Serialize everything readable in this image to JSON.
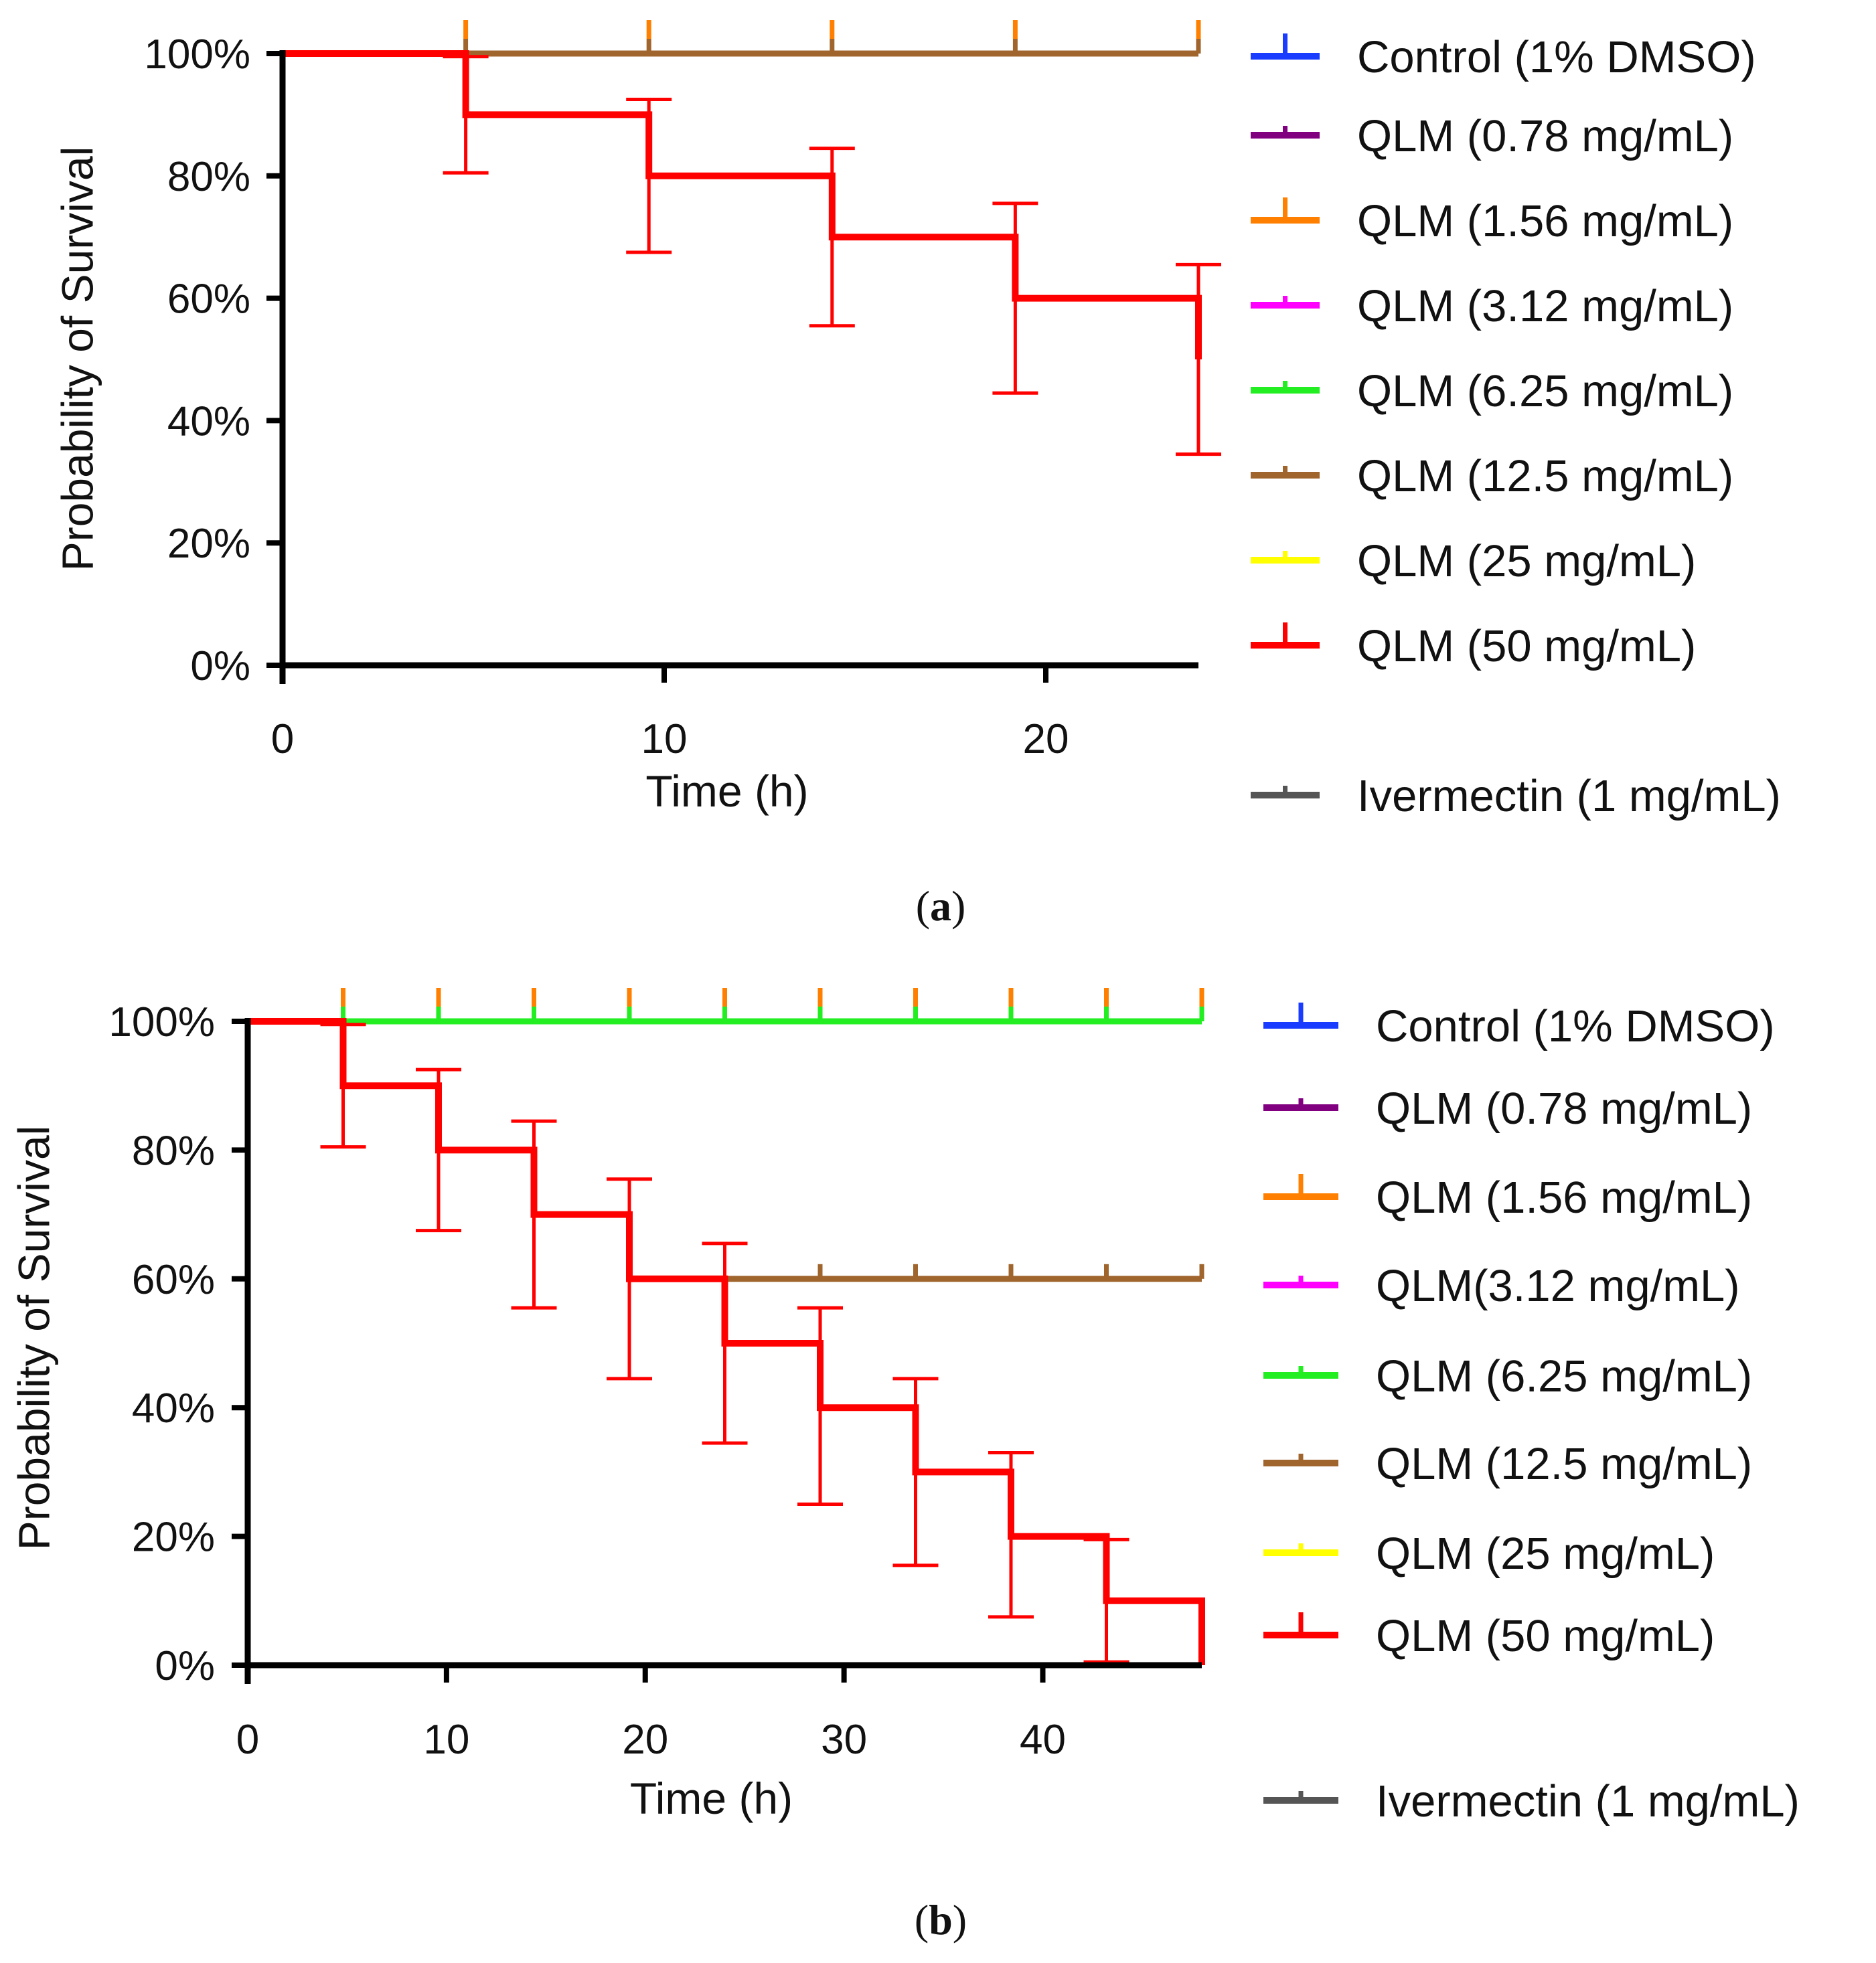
{
  "colors": {
    "control": "#1a3cff",
    "q078": "#800080",
    "q156": "#ff8000",
    "q312": "#ff00ff",
    "q625": "#22ee22",
    "q125": "#a0642d",
    "q25": "#ffff00",
    "q50": "#ff0000",
    "iver": "#555555",
    "axis": "#000000"
  },
  "chart_data": [
    {
      "type": "line",
      "subtype": "kaplan-meier step",
      "caption": "(a)",
      "xlabel": "Time (h)",
      "ylabel": "Probability of Survival",
      "xlim": [
        0,
        24
      ],
      "ylim": [
        0,
        100
      ],
      "xticks": [
        "0",
        "10",
        "20"
      ],
      "xtick_values": [
        0,
        10,
        20
      ],
      "yticks": [
        "0%",
        "20%",
        "40%",
        "60%",
        "80%",
        "100%"
      ],
      "ytick_values": [
        0,
        20,
        40,
        60,
        80,
        100
      ],
      "legend": [
        "Control (1% DMSO)",
        "QLM (0.78 mg/mL)",
        "QLM (1.56 mg/mL)",
        "QLM (3.12 mg/mL)",
        "QLM (6.25 mg/mL)",
        "QLM (12.5 mg/mL)",
        "QLM (25 mg/mL)",
        "QLM (50 mg/mL)",
        "Ivermectin (1 mg/mL)"
      ],
      "legend_keys": [
        "control",
        "q078",
        "q156",
        "q312",
        "q625",
        "q125",
        "q25",
        "q50",
        "iver"
      ],
      "legend_placement": "right",
      "series": [
        {
          "name": "QLM (12.5 mg/mL)",
          "key": "q125",
          "steps": [
            [
              0,
              100
            ],
            [
              24,
              100
            ]
          ],
          "censor_ticks": [
            4.8,
            9.6,
            14.4,
            19.2,
            24
          ],
          "censor_color_key": "q156"
        },
        {
          "name": "QLM (50 mg/mL)",
          "key": "q50",
          "steps": [
            [
              0,
              100
            ],
            [
              4.8,
              90
            ],
            [
              9.6,
              80
            ],
            [
              14.4,
              70
            ],
            [
              19.2,
              60
            ],
            [
              24,
              50
            ]
          ],
          "error_bars": [
            [
              4.8,
              80.5,
              99.5
            ],
            [
              9.6,
              67.5,
              92.5
            ],
            [
              14.4,
              55.5,
              84.5
            ],
            [
              19.2,
              44.5,
              75.5
            ],
            [
              24,
              34.5,
              65.5
            ]
          ]
        }
      ]
    },
    {
      "type": "line",
      "subtype": "kaplan-meier step",
      "caption": "(b)",
      "xlabel": "Time (h)",
      "ylabel": "Probability of Survival",
      "xlim": [
        0,
        48
      ],
      "ylim": [
        0,
        100
      ],
      "xticks": [
        "0",
        "10",
        "20",
        "30",
        "40"
      ],
      "xtick_values": [
        0,
        10,
        20,
        30,
        40
      ],
      "yticks": [
        "0%",
        "20%",
        "40%",
        "60%",
        "80%",
        "100%"
      ],
      "ytick_values": [
        0,
        20,
        40,
        60,
        80,
        100
      ],
      "legend": [
        "Control (1% DMSO)",
        "QLM (0.78 mg/mL)",
        "QLM (1.56 mg/mL)",
        "QLM(3.12 mg/mL)",
        "QLM (6.25 mg/mL)",
        "QLM (12.5 mg/mL)",
        "QLM (25 mg/mL)",
        "QLM (50 mg/mL)",
        "Ivermectin (1 mg/mL)"
      ],
      "legend_keys": [
        "control",
        "q078",
        "q156",
        "q312",
        "q625",
        "q125",
        "q25",
        "q50",
        "iver"
      ],
      "legend_placement": "right",
      "series": [
        {
          "name": "QLM (6.25 mg/mL)",
          "key": "q625",
          "steps": [
            [
              0,
              100
            ],
            [
              48,
              100
            ]
          ],
          "censor_ticks": [
            4.8,
            9.6,
            14.4,
            19.2,
            24,
            28.8,
            33.6,
            38.4,
            43.2,
            48
          ],
          "censor_color_key": "q156"
        },
        {
          "name": "QLM (12.5 mg/mL)",
          "key": "q125",
          "steps": [
            [
              24,
              60
            ],
            [
              48,
              60
            ]
          ],
          "censor_ticks": [
            28.8,
            33.6,
            38.4,
            43.2,
            48
          ]
        },
        {
          "name": "QLM (50 mg/mL)",
          "key": "q50",
          "steps": [
            [
              0,
              100
            ],
            [
              4.8,
              90
            ],
            [
              9.6,
              80
            ],
            [
              14.4,
              70
            ],
            [
              19.2,
              60
            ],
            [
              24,
              50
            ],
            [
              28.8,
              40
            ],
            [
              33.6,
              30
            ],
            [
              38.4,
              20
            ],
            [
              43.2,
              10
            ],
            [
              48,
              0
            ]
          ],
          "error_bars": [
            [
              4.8,
              80.5,
              99.5
            ],
            [
              9.6,
              67.5,
              92.5
            ],
            [
              14.4,
              55.5,
              84.5
            ],
            [
              19.2,
              44.5,
              75.5
            ],
            [
              24,
              34.5,
              65.5
            ],
            [
              28.8,
              25,
              55.5
            ],
            [
              33.6,
              15.5,
              44.5
            ],
            [
              38.4,
              7.5,
              33
            ],
            [
              43.2,
              0.5,
              19.5
            ]
          ]
        }
      ]
    }
  ]
}
